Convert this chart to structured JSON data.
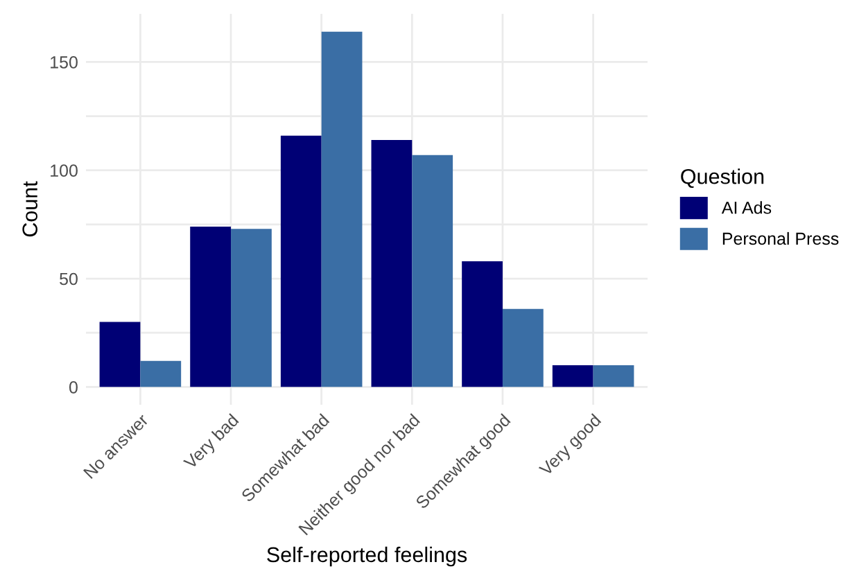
{
  "chart_data": {
    "type": "bar",
    "xlabel": "Self-reported feelings",
    "ylabel": "Count",
    "legend_title": "Question",
    "categories": [
      "No answer",
      "Very bad",
      "Somewhat bad",
      "Neither good nor bad",
      "Somewhat good",
      "Very good"
    ],
    "series": [
      {
        "name": "AI Ads",
        "color": "#000075",
        "values": [
          30,
          74,
          116,
          114,
          58,
          10
        ]
      },
      {
        "name": "Personal Press",
        "color": "#3a6ea5",
        "values": [
          12,
          73,
          164,
          107,
          36,
          10
        ]
      }
    ],
    "ylim": [
      -8.2,
      172.2
    ],
    "yticks": [
      0,
      {
        "value": 25,
        "label": null
      },
      50,
      {
        "value": 75,
        "label": null
      },
      100,
      {
        "value": 125,
        "label": null
      },
      150
    ],
    "grid": true,
    "legend": "right"
  }
}
